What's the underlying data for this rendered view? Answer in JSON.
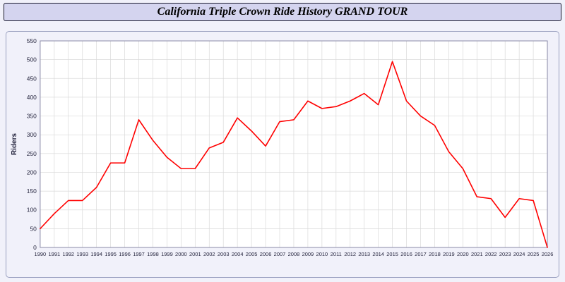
{
  "chart_data": {
    "type": "line",
    "title": "California Triple Crown Ride History GRAND TOUR",
    "xlabel": "",
    "ylabel": "Riders",
    "ylim": [
      0,
      550
    ],
    "ytick_step": 50,
    "grid": true,
    "legend_position": "none",
    "categories": [
      1990,
      1991,
      1992,
      1993,
      1994,
      1995,
      1996,
      1997,
      1998,
      1999,
      2000,
      2001,
      2002,
      2003,
      2004,
      2005,
      2006,
      2007,
      2008,
      2009,
      2010,
      2011,
      2012,
      2013,
      2014,
      2015,
      2016,
      2017,
      2018,
      2019,
      2020,
      2021,
      2022,
      2023,
      2024,
      2025,
      2026
    ],
    "series": [
      {
        "name": "Riders",
        "values": [
          50,
          90,
          125,
          125,
          160,
          225,
          225,
          340,
          285,
          240,
          210,
          210,
          265,
          280,
          345,
          310,
          270,
          335,
          340,
          390,
          370,
          375,
          390,
          410,
          380,
          495,
          390,
          350,
          325,
          255,
          210,
          135,
          130,
          80,
          130,
          125,
          0
        ]
      }
    ],
    "colors": {
      "line": "#ff0000",
      "plot_background": "#ffffff",
      "page_background": "#f1f1fa",
      "title_bar_background": "#d4d4ef",
      "title_bar_border": "#1a1a2e",
      "gridline": "#d9d9d9",
      "tick_label": "#26263f",
      "plot_border": "#8a8aa8"
    }
  }
}
